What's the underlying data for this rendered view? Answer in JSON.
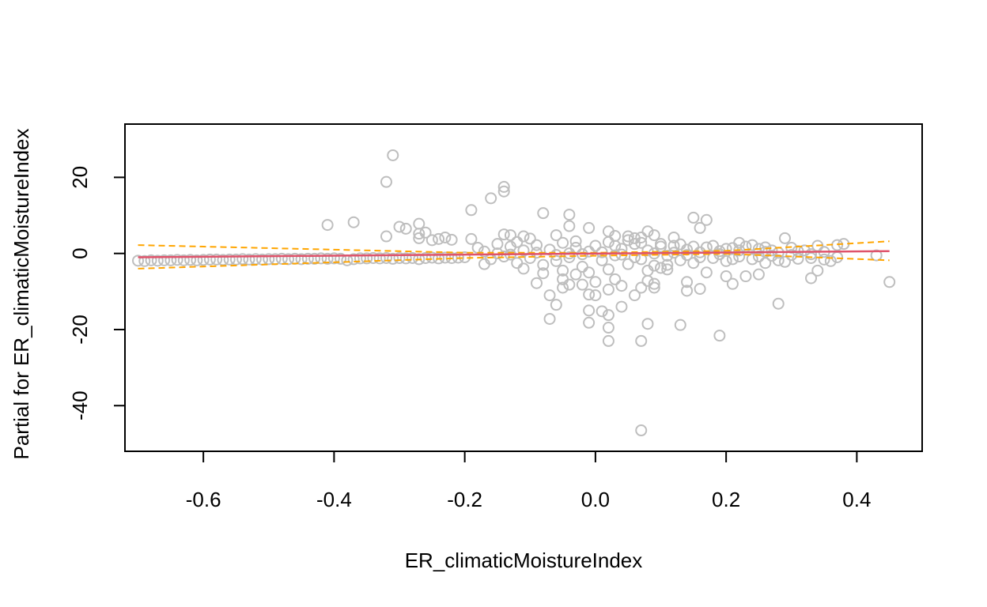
{
  "chart_data": {
    "type": "scatter",
    "title": "",
    "xlabel": "ER_climaticMoistureIndex",
    "ylabel": "Partial for ER_climaticMoistureIndex",
    "xlim": [
      -0.72,
      0.5
    ],
    "ylim": [
      -52,
      34
    ],
    "x_ticks": [
      -0.6,
      -0.4,
      -0.2,
      0.0,
      0.2,
      0.4
    ],
    "x_tick_labels": [
      "-0.6",
      "-0.4",
      "-0.2",
      "0.0",
      "0.2",
      "0.4"
    ],
    "y_ticks": [
      -40,
      -20,
      0,
      20
    ],
    "y_tick_labels": [
      "-40",
      "-20",
      "0",
      "20"
    ],
    "grid": false,
    "colors": {
      "points": "#bebebe",
      "fit_line": "#df536b",
      "confidence_band": "#ffa500",
      "axes": "#000000"
    },
    "fit_line": {
      "x": [
        -0.7,
        0.45
      ],
      "y": [
        -1.0,
        0.6
      ]
    },
    "confidence_upper": {
      "x": [
        -0.7,
        -0.2,
        0.0,
        0.2,
        0.45
      ],
      "y": [
        2.2,
        0.2,
        0.2,
        0.7,
        3.2
      ]
    },
    "confidence_lower": {
      "x": [
        -0.7,
        -0.2,
        0.0,
        0.2,
        0.45
      ],
      "y": [
        -4.0,
        -1.2,
        -0.6,
        -0.1,
        -1.8
      ]
    },
    "points": [
      [
        -0.7,
        -1.9
      ],
      [
        -0.69,
        -2.0
      ],
      [
        -0.68,
        -1.8
      ],
      [
        -0.67,
        -1.9
      ],
      [
        -0.66,
        -1.8
      ],
      [
        -0.65,
        -1.8
      ],
      [
        -0.64,
        -1.7
      ],
      [
        -0.63,
        -1.8
      ],
      [
        -0.62,
        -1.7
      ],
      [
        -0.61,
        -1.8
      ],
      [
        -0.6,
        -1.7
      ],
      [
        -0.59,
        -1.6
      ],
      [
        -0.58,
        -1.6
      ],
      [
        -0.57,
        -1.7
      ],
      [
        -0.56,
        -1.6
      ],
      [
        -0.55,
        -1.6
      ],
      [
        -0.54,
        -1.5
      ],
      [
        -0.53,
        -1.6
      ],
      [
        -0.52,
        -1.5
      ],
      [
        -0.51,
        -1.6
      ],
      [
        -0.5,
        -1.5
      ],
      [
        -0.49,
        -1.5
      ],
      [
        -0.48,
        -1.4
      ],
      [
        -0.47,
        -1.5
      ],
      [
        -0.46,
        -1.4
      ],
      [
        -0.45,
        -1.5
      ],
      [
        -0.44,
        -1.4
      ],
      [
        -0.43,
        -1.4
      ],
      [
        -0.42,
        -1.3
      ],
      [
        -0.41,
        -1.4
      ],
      [
        -0.4,
        -1.3
      ],
      [
        -0.39,
        -1.4
      ],
      [
        -0.38,
        -1.8
      ],
      [
        -0.37,
        -1.5
      ],
      [
        -0.36,
        -1.3
      ],
      [
        -0.35,
        -1.3
      ],
      [
        -0.34,
        -1.2
      ],
      [
        -0.33,
        -1.3
      ],
      [
        -0.32,
        -1.2
      ],
      [
        -0.31,
        -1.4
      ],
      [
        -0.3,
        -1.2
      ],
      [
        -0.29,
        -1.3
      ],
      [
        -0.28,
        -1.2
      ],
      [
        -0.27,
        -1.5
      ],
      [
        -0.26,
        -1.2
      ],
      [
        -0.25,
        -1.1
      ],
      [
        -0.24,
        -1.3
      ],
      [
        -0.23,
        -1.1
      ],
      [
        -0.22,
        -1.2
      ],
      [
        -0.21,
        -1.1
      ],
      [
        -0.2,
        -1.0
      ],
      [
        -0.41,
        7.5
      ],
      [
        -0.37,
        8.2
      ],
      [
        -0.32,
        18.8
      ],
      [
        -0.31,
        25.8
      ],
      [
        -0.32,
        4.5
      ],
      [
        -0.3,
        7.0
      ],
      [
        -0.29,
        6.5
      ],
      [
        -0.27,
        7.8
      ],
      [
        -0.27,
        5.2
      ],
      [
        -0.26,
        5.5
      ],
      [
        -0.27,
        4.0
      ],
      [
        -0.25,
        3.5
      ],
      [
        -0.24,
        3.8
      ],
      [
        -0.23,
        4.2
      ],
      [
        -0.22,
        3.6
      ],
      [
        -0.19,
        11.4
      ],
      [
        -0.19,
        3.8
      ],
      [
        -0.16,
        14.5
      ],
      [
        -0.14,
        17.5
      ],
      [
        -0.14,
        16.3
      ],
      [
        -0.14,
        5.0
      ],
      [
        -0.13,
        4.8
      ],
      [
        -0.11,
        4.5
      ],
      [
        -0.1,
        3.9
      ],
      [
        -0.08,
        10.6
      ],
      [
        -0.06,
        4.8
      ],
      [
        -0.04,
        10.2
      ],
      [
        -0.04,
        7.2
      ],
      [
        -0.01,
        6.7
      ],
      [
        0.02,
        5.8
      ],
      [
        0.03,
        4.6
      ],
      [
        0.05,
        4.5
      ],
      [
        0.06,
        4.0
      ],
      [
        0.07,
        4.2
      ],
      [
        0.08,
        5.8
      ],
      [
        0.09,
        4.8
      ],
      [
        0.12,
        4.2
      ],
      [
        0.15,
        9.4
      ],
      [
        0.16,
        6.7
      ],
      [
        0.17,
        8.8
      ],
      [
        0.22,
        2.8
      ],
      [
        0.29,
        4.0
      ],
      [
        0.38,
        2.5
      ],
      [
        0.43,
        -0.5
      ],
      [
        0.45,
        -7.5
      ],
      [
        -0.09,
        -7.8
      ],
      [
        -0.07,
        -11.0
      ],
      [
        -0.07,
        -17.2
      ],
      [
        -0.06,
        -13.5
      ],
      [
        -0.05,
        -9.0
      ],
      [
        -0.05,
        -6.8
      ],
      [
        -0.04,
        -8.2
      ],
      [
        -0.03,
        -5.5
      ],
      [
        -0.02,
        -8.2
      ],
      [
        -0.01,
        -10.8
      ],
      [
        -0.01,
        -15.0
      ],
      [
        -0.01,
        -18.2
      ],
      [
        0.0,
        -11.0
      ],
      [
        0.0,
        -7.5
      ],
      [
        0.01,
        -15.2
      ],
      [
        0.02,
        -16.2
      ],
      [
        0.02,
        -19.5
      ],
      [
        0.02,
        -23.0
      ],
      [
        0.02,
        -9.5
      ],
      [
        0.03,
        -6.8
      ],
      [
        0.04,
        -14.0
      ],
      [
        0.04,
        -8.5
      ],
      [
        0.06,
        -11.0
      ],
      [
        0.07,
        -23.0
      ],
      [
        0.07,
        -46.5
      ],
      [
        0.07,
        -9.0
      ],
      [
        0.08,
        -18.5
      ],
      [
        0.08,
        -7.2
      ],
      [
        0.09,
        -9.0
      ],
      [
        0.09,
        -8.0
      ],
      [
        0.1,
        -3.8
      ],
      [
        0.11,
        -4.2
      ],
      [
        0.13,
        -18.8
      ],
      [
        0.14,
        -9.8
      ],
      [
        0.14,
        -7.5
      ],
      [
        0.16,
        -9.3
      ],
      [
        0.17,
        -5.0
      ],
      [
        0.19,
        -21.6
      ],
      [
        0.2,
        -6.0
      ],
      [
        0.21,
        -8.0
      ],
      [
        0.23,
        -6.0
      ],
      [
        0.25,
        -5.5
      ],
      [
        0.26,
        -2.5
      ],
      [
        0.28,
        -13.2
      ],
      [
        0.33,
        -6.5
      ],
      [
        0.34,
        -4.5
      ],
      [
        -0.18,
        1.5
      ],
      [
        -0.17,
        0.5
      ],
      [
        -0.16,
        -1.5
      ],
      [
        -0.15,
        2.5
      ],
      [
        -0.14,
        -0.8
      ],
      [
        -0.13,
        1.8
      ],
      [
        -0.12,
        -2.5
      ],
      [
        -0.11,
        0.8
      ],
      [
        -0.1,
        -1.2
      ],
      [
        -0.09,
        2.2
      ],
      [
        -0.08,
        -3.0
      ],
      [
        -0.07,
        1.0
      ],
      [
        -0.06,
        -2.0
      ],
      [
        -0.05,
        2.8
      ],
      [
        -0.04,
        -1.0
      ],
      [
        -0.03,
        1.5
      ],
      [
        -0.02,
        -3.5
      ],
      [
        -0.01,
        0.5
      ],
      [
        0.0,
        2.0
      ],
      [
        0.01,
        -1.8
      ],
      [
        0.02,
        3.0
      ],
      [
        0.03,
        -0.5
      ],
      [
        0.04,
        1.2
      ],
      [
        0.05,
        -2.8
      ],
      [
        0.06,
        2.5
      ],
      [
        0.07,
        -1.5
      ],
      [
        0.08,
        0.8
      ],
      [
        0.09,
        -3.2
      ],
      [
        0.1,
        1.8
      ],
      [
        0.11,
        -0.6
      ],
      [
        0.12,
        2.0
      ],
      [
        0.13,
        -1.8
      ],
      [
        0.14,
        1.0
      ],
      [
        0.15,
        -2.5
      ],
      [
        0.16,
        0.3
      ],
      [
        0.17,
        1.6
      ],
      [
        0.18,
        -1.2
      ],
      [
        0.19,
        0.6
      ],
      [
        0.2,
        -2.0
      ],
      [
        0.21,
        1.4
      ],
      [
        0.22,
        -0.8
      ],
      [
        0.23,
        1.8
      ],
      [
        0.24,
        -1.5
      ],
      [
        0.25,
        1.2
      ],
      [
        0.26,
        0.4
      ],
      [
        0.27,
        -0.6
      ],
      [
        0.28,
        -1.8
      ],
      [
        0.29,
        -2.2
      ],
      [
        0.3,
        1.5
      ],
      [
        0.31,
        -1.4
      ],
      [
        0.32,
        0.8
      ],
      [
        0.33,
        -1.2
      ],
      [
        0.34,
        2.0
      ],
      [
        0.35,
        -1.6
      ],
      [
        0.36,
        -2.0
      ],
      [
        0.37,
        -1.0
      ],
      [
        0.37,
        2.2
      ],
      [
        -0.17,
        -2.8
      ],
      [
        -0.15,
        0.0
      ],
      [
        -0.13,
        -0.3
      ],
      [
        -0.12,
        3.0
      ],
      [
        -0.11,
        -4.0
      ],
      [
        -0.09,
        0.2
      ],
      [
        -0.08,
        -5.2
      ],
      [
        -0.06,
        -0.4
      ],
      [
        -0.05,
        -4.5
      ],
      [
        -0.04,
        0.0
      ],
      [
        -0.03,
        3.2
      ],
      [
        -0.02,
        -0.2
      ],
      [
        -0.01,
        -5.0
      ],
      [
        0.01,
        0.3
      ],
      [
        0.02,
        -4.2
      ],
      [
        0.03,
        2.0
      ],
      [
        0.04,
        -0.3
      ],
      [
        0.05,
        3.5
      ],
      [
        0.06,
        -1.0
      ],
      [
        0.07,
        2.8
      ],
      [
        0.08,
        -4.5
      ],
      [
        0.09,
        0.0
      ],
      [
        0.1,
        2.5
      ],
      [
        0.11,
        -3.0
      ],
      [
        0.12,
        0.2
      ],
      [
        0.13,
        2.4
      ],
      [
        0.14,
        -0.4
      ],
      [
        0.15,
        1.8
      ],
      [
        0.16,
        -1.0
      ],
      [
        0.18,
        2.0
      ],
      [
        0.19,
        -0.2
      ],
      [
        0.2,
        1.2
      ],
      [
        0.21,
        -1.5
      ],
      [
        0.22,
        0.8
      ],
      [
        0.24,
        2.2
      ],
      [
        0.25,
        -0.8
      ],
      [
        0.26,
        1.6
      ],
      [
        0.27,
        0.8
      ],
      [
        0.28,
        0.2
      ],
      [
        0.3,
        -0.4
      ],
      [
        0.31,
        0.6
      ],
      [
        0.33,
        -0.2
      ],
      [
        0.35,
        0.4
      ]
    ]
  }
}
